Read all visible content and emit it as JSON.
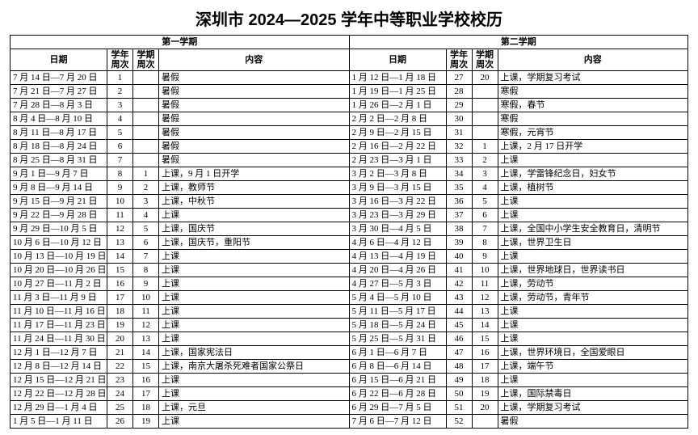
{
  "title": "深圳市 2024—2025 学年中等职业学校校历",
  "sem1_header": "第一学期",
  "sem2_header": "第二学期",
  "col_date": "日期",
  "col_year_week": "学年周次",
  "col_sem_week": "学期周次",
  "col_content": "内容",
  "rows": [
    {
      "d1": "7 月 14 日—7 月 20 日",
      "y1": "1",
      "s1": "",
      "c1": "暑假",
      "d2": "1 月 12 日—1 月 18 日",
      "y2": "27",
      "s2": "20",
      "c2": "上课，学期复习考试"
    },
    {
      "d1": "7 月 21 日—7 月 27 日",
      "y1": "2",
      "s1": "",
      "c1": "暑假",
      "d2": "1 月 19 日—1 月 25 日",
      "y2": "28",
      "s2": "",
      "c2": "寒假"
    },
    {
      "d1": "7 月 28 日—8 月 3 日",
      "y1": "3",
      "s1": "",
      "c1": "暑假",
      "d2": "1 月 26 日—2 月 1 日",
      "y2": "29",
      "s2": "",
      "c2": "寒假，春节"
    },
    {
      "d1": "8 月 4 日—8 月 10 日",
      "y1": "4",
      "s1": "",
      "c1": "暑假",
      "d2": "2 月 2 日—2 月 8 日",
      "y2": "30",
      "s2": "",
      "c2": "寒假"
    },
    {
      "d1": "8 月 11 日—8 月 17 日",
      "y1": "5",
      "s1": "",
      "c1": "暑假",
      "d2": "2 月 9 日—2 月 15 日",
      "y2": "31",
      "s2": "",
      "c2": "寒假，元宵节"
    },
    {
      "d1": "8 月 18 日—8 月 24 日",
      "y1": "6",
      "s1": "",
      "c1": "暑假",
      "d2": "2 月 16 日—2 月 22 日",
      "y2": "32",
      "s2": "1",
      "c2": "上课，2 月 17 日开学"
    },
    {
      "d1": "8 月 25 日—8 月 31 日",
      "y1": "7",
      "s1": "",
      "c1": "暑假",
      "d2": "2 月 23 日—3 月 1 日",
      "y2": "33",
      "s2": "2",
      "c2": "上课"
    },
    {
      "d1": "9 月 1 日—9 月 7 日",
      "y1": "8",
      "s1": "1",
      "c1": "上课，9 月 1 日开学",
      "d2": "3 月 2 日—3 月 8 日",
      "y2": "34",
      "s2": "3",
      "c2": "上课，学雷锋纪念日，妇女节"
    },
    {
      "d1": "9 月 8 日—9 月 14 日",
      "y1": "9",
      "s1": "2",
      "c1": "上课，教师节",
      "d2": "3 月 9 日—3 月 15 日",
      "y2": "35",
      "s2": "4",
      "c2": "上课，植树节"
    },
    {
      "d1": "9 月 15 日—9 月 21 日",
      "y1": "10",
      "s1": "3",
      "c1": "上课，中秋节",
      "d2": "3 月 16 日—3 月 22 日",
      "y2": "36",
      "s2": "5",
      "c2": "上课"
    },
    {
      "d1": "9 月 22 日—9 月 28 日",
      "y1": "11",
      "s1": "4",
      "c1": "上课",
      "d2": "3 月 23 日—3 月 29 日",
      "y2": "37",
      "s2": "6",
      "c2": "上课"
    },
    {
      "d1": "9 月 29 日—10 月 5 日",
      "y1": "12",
      "s1": "5",
      "c1": "上课，国庆节",
      "d2": "3 月 30 日—4 月 5 日",
      "y2": "38",
      "s2": "7",
      "c2": "上课，全国中小学生安全教育日，清明节"
    },
    {
      "d1": "10 月 6 日—10 月 12 日",
      "y1": "13",
      "s1": "6",
      "c1": "上课，国庆节，重阳节",
      "d2": "4 月 6 日—4 月 12 日",
      "y2": "39",
      "s2": "8",
      "c2": "上课，世界卫生日"
    },
    {
      "d1": "10 月 13 日—10 月 19 日",
      "y1": "14",
      "s1": "7",
      "c1": "上课",
      "d2": "4 月 13 日—4 月 19 日",
      "y2": "40",
      "s2": "9",
      "c2": "上课"
    },
    {
      "d1": "10 月 20 日—10 月 26 日",
      "y1": "15",
      "s1": "8",
      "c1": "上课",
      "d2": "4 月 20 日—4 月 26 日",
      "y2": "41",
      "s2": "10",
      "c2": "上课，世界地球日，世界读书日"
    },
    {
      "d1": "10 月 27 日—11 月 2 日",
      "y1": "16",
      "s1": "9",
      "c1": "上课",
      "d2": "4 月 27 日—5 月 3 日",
      "y2": "42",
      "s2": "11",
      "c2": "上课，劳动节"
    },
    {
      "d1": "11 月 3 日—11 月 9 日",
      "y1": "17",
      "s1": "10",
      "c1": "上课",
      "d2": "5 月 4 日—5 月 10 日",
      "y2": "43",
      "s2": "12",
      "c2": "上课，劳动节，青年节"
    },
    {
      "d1": "11 月 10 日—11 月 16 日",
      "y1": "18",
      "s1": "11",
      "c1": "上课",
      "d2": "5 月 11 日—5 月 17 日",
      "y2": "44",
      "s2": "13",
      "c2": "上课"
    },
    {
      "d1": "11 月 17 日—11 月 23 日",
      "y1": "19",
      "s1": "12",
      "c1": "上课",
      "d2": "5 月 18 日—5 月 24 日",
      "y2": "45",
      "s2": "14",
      "c2": "上课"
    },
    {
      "d1": "11 月 24 日—11 月 30 日",
      "y1": "20",
      "s1": "13",
      "c1": "上课",
      "d2": "5 月 25 日—5 月 31 日",
      "y2": "46",
      "s2": "15",
      "c2": "上课"
    },
    {
      "d1": "12 月 1 日—12 月 7 日",
      "y1": "21",
      "s1": "14",
      "c1": "上课，国家宪法日",
      "d2": "6 月 1 日—6 月 7 日",
      "y2": "47",
      "s2": "16",
      "c2": "上课，世界环境日，全国爱眼日"
    },
    {
      "d1": "12 月 8 日—12 月 14 日",
      "y1": "22",
      "s1": "15",
      "c1": "上课，南京大屠杀死难者国家公祭日",
      "d2": "6 月 8 日—6 月 14 日",
      "y2": "48",
      "s2": "17",
      "c2": "上课，端午节"
    },
    {
      "d1": "12 月 15 日—12 月 21 日",
      "y1": "23",
      "s1": "16",
      "c1": "上课",
      "d2": "6 月 15 日—6 月 21 日",
      "y2": "49",
      "s2": "18",
      "c2": "上课"
    },
    {
      "d1": "12 月 22 日—12 月 28 日",
      "y1": "24",
      "s1": "17",
      "c1": "上课",
      "d2": "6 月 22 日—6 月 28 日",
      "y2": "50",
      "s2": "19",
      "c2": "上课，国际禁毒日"
    },
    {
      "d1": "12 月 29 日—1 月 4 日",
      "y1": "25",
      "s1": "18",
      "c1": "上课，元旦",
      "d2": "6 月 29 日—7 月 5 日",
      "y2": "51",
      "s2": "20",
      "c2": "上课，学期复习考试"
    },
    {
      "d1": "1 月 5 日—1 月 11 日",
      "y1": "26",
      "s1": "19",
      "c1": "上课",
      "d2": "7 月 6 日—7 月 12 日",
      "y2": "52",
      "s2": "",
      "c2": "暑假"
    }
  ]
}
